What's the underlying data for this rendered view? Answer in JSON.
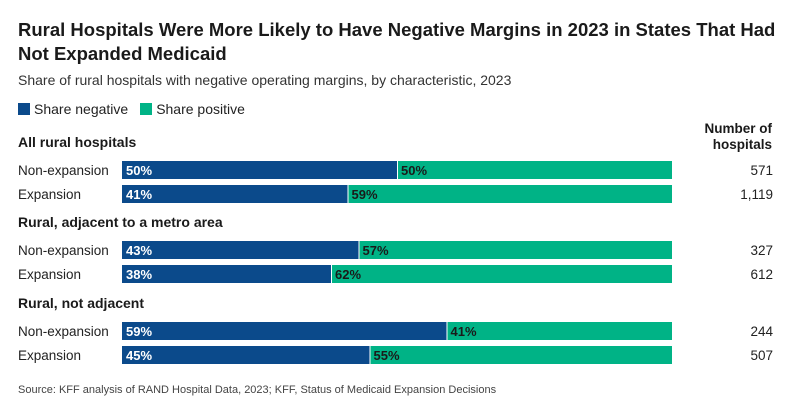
{
  "title": "Rural Hospitals Were More Likely to Have Negative Margins in 2023 in States That Had Not Expanded Medicaid",
  "subtitle": "Share of rural hospitals with negative operating margins, by characteristic, 2023",
  "legend": {
    "negative": "Share negative",
    "positive": "Share positive"
  },
  "count_header": "Number of hospitals",
  "source": "Source: KFF analysis of RAND Hospital Data, 2023; KFF, Status of Medicaid Expansion Decisions",
  "colors": {
    "negative": "#0b4a8b",
    "positive": "#00b386"
  },
  "chart_data": {
    "type": "bar",
    "orientation": "horizontal",
    "stacked": true,
    "title": "Rural Hospitals Were More Likely to Have Negative Margins in 2023 in States That Had Not Expanded Medicaid",
    "series_names": [
      "Share negative",
      "Share positive"
    ],
    "groups": [
      {
        "label": "All rural hospitals",
        "rows": [
          {
            "label": "Non-expansion",
            "negative": 50,
            "positive": 50,
            "negative_label": "50%",
            "positive_label": "50%",
            "count": "571"
          },
          {
            "label": "Expansion",
            "negative": 41,
            "positive": 59,
            "negative_label": "41%",
            "positive_label": "59%",
            "count": "1,119"
          }
        ]
      },
      {
        "label": "Rural, adjacent to a metro area",
        "rows": [
          {
            "label": "Non-expansion",
            "negative": 43,
            "positive": 57,
            "negative_label": "43%",
            "positive_label": "57%",
            "count": "327"
          },
          {
            "label": "Expansion",
            "negative": 38,
            "positive": 62,
            "negative_label": "38%",
            "positive_label": "62%",
            "count": "612"
          }
        ]
      },
      {
        "label": "Rural, not adjacent",
        "rows": [
          {
            "label": "Non-expansion",
            "negative": 59,
            "positive": 41,
            "negative_label": "59%",
            "positive_label": "41%",
            "count": "244"
          },
          {
            "label": "Expansion",
            "negative": 45,
            "positive": 55,
            "negative_label": "45%",
            "positive_label": "55%",
            "count": "507"
          }
        ]
      }
    ]
  }
}
